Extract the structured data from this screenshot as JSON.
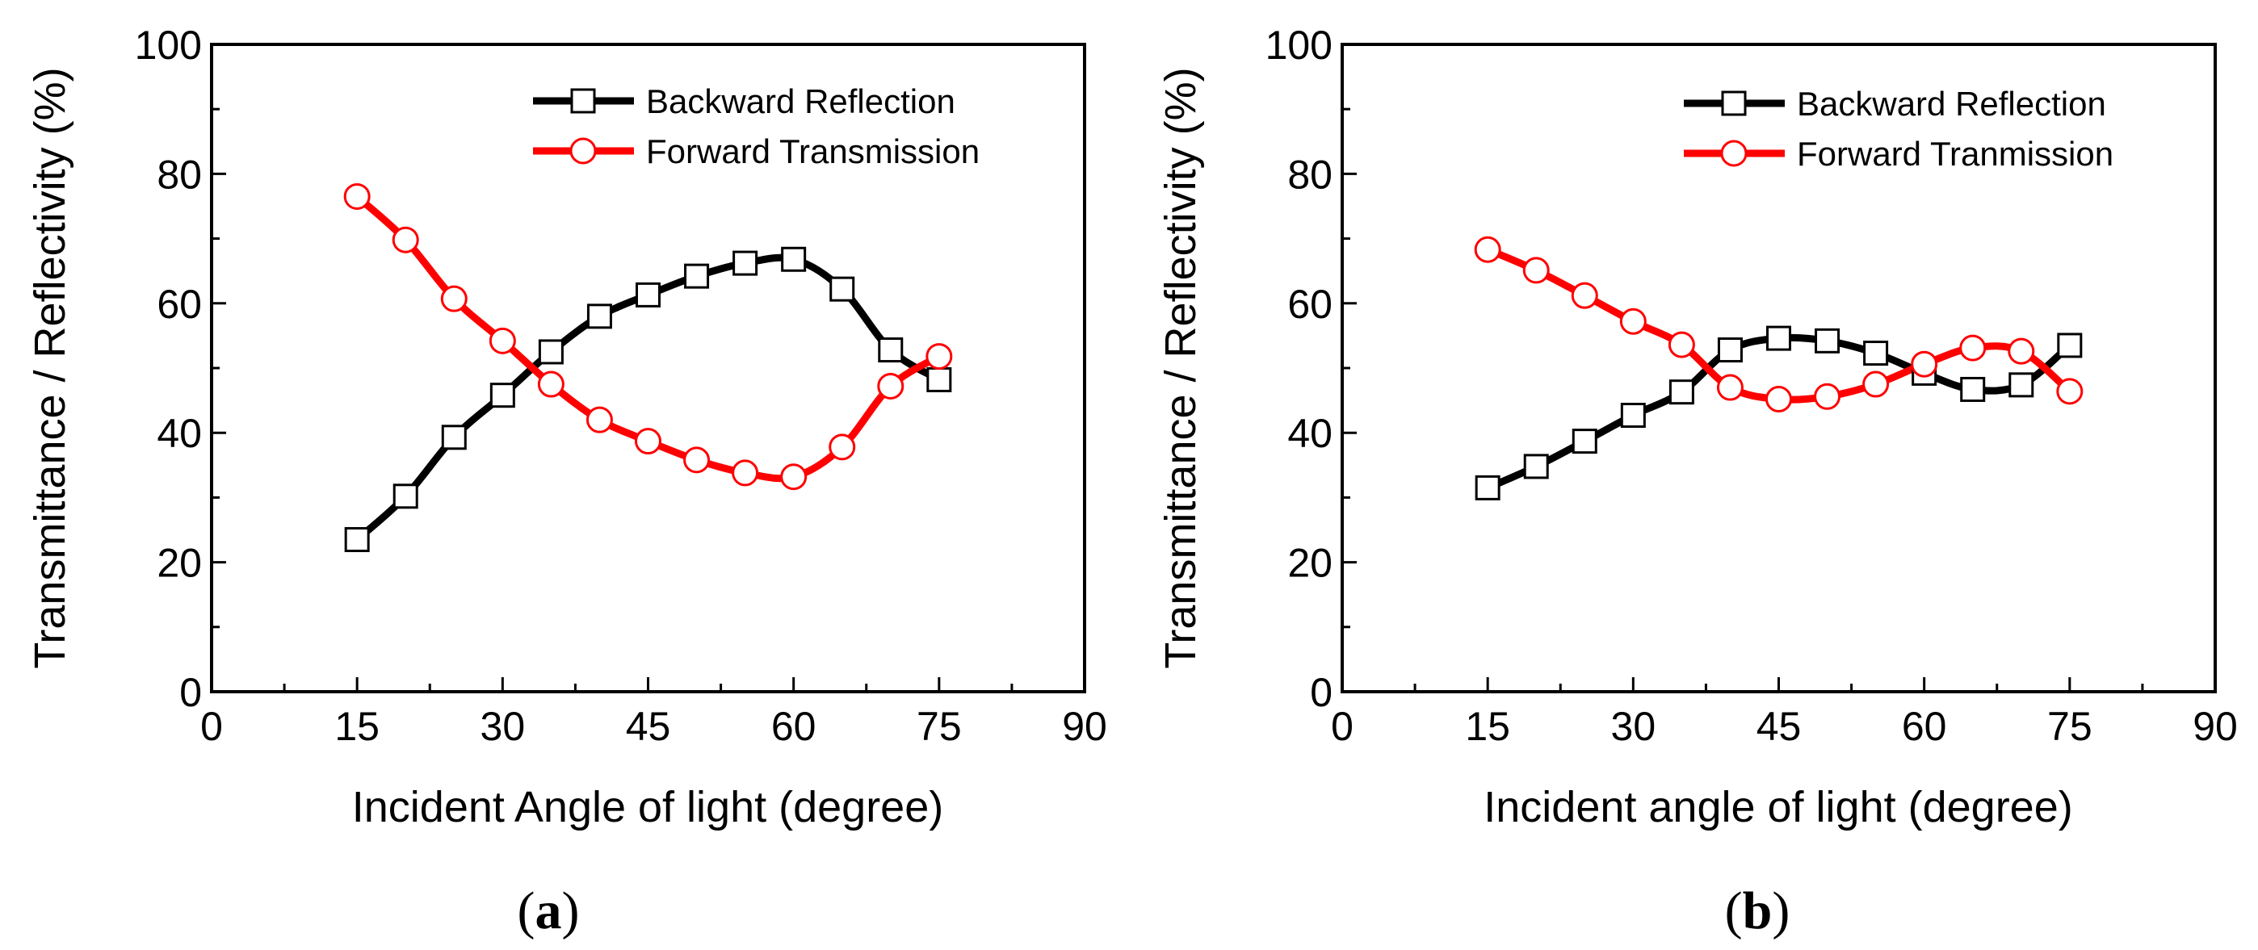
{
  "chart_data": [
    {
      "type": "line",
      "panel": "a",
      "panel_label": "a",
      "xlabel": "Incident Angle of light (degree)",
      "ylabel": "Transmittance / Reflectivity (%)",
      "xlim": [
        0,
        90
      ],
      "ylim": [
        0,
        100
      ],
      "xticks": [
        0,
        15,
        30,
        45,
        60,
        75,
        90
      ],
      "yticks": [
        0,
        20,
        40,
        60,
        80,
        100
      ],
      "legend_position": "top-right",
      "x": [
        15,
        20,
        25,
        30,
        35,
        40,
        45,
        50,
        55,
        60,
        65,
        70,
        75
      ],
      "series": [
        {
          "name": "Backward Reflection",
          "color": "#000000",
          "marker": "square",
          "values": [
            23.5,
            30.2,
            39.3,
            45.8,
            52.5,
            58.0,
            61.3,
            64.2,
            66.2,
            66.8,
            62.2,
            52.8,
            48.2
          ]
        },
        {
          "name": "Forward Transmission",
          "color": "#ff0000",
          "marker": "circle",
          "values": [
            76.5,
            69.8,
            60.7,
            54.2,
            47.5,
            42.0,
            38.7,
            35.8,
            33.8,
            33.2,
            37.8,
            47.2,
            51.8
          ]
        }
      ]
    },
    {
      "type": "line",
      "panel": "b",
      "panel_label": "b",
      "xlabel": "Incident angle of light (degree)",
      "ylabel": "Transmittance / Reflectivity (%)",
      "xlim": [
        0,
        90
      ],
      "ylim": [
        0,
        100
      ],
      "xticks": [
        0,
        15,
        30,
        45,
        60,
        75,
        90
      ],
      "yticks": [
        0,
        20,
        40,
        60,
        80,
        100
      ],
      "legend_position": "top-right",
      "x": [
        15,
        20,
        25,
        30,
        35,
        40,
        45,
        50,
        55,
        60,
        65,
        70,
        75
      ],
      "series": [
        {
          "name": "Backward Reflection",
          "color": "#000000",
          "marker": "square",
          "values": [
            31.5,
            34.8,
            38.7,
            42.7,
            46.3,
            52.8,
            54.6,
            54.2,
            52.3,
            49.2,
            46.7,
            47.4,
            53.5
          ]
        },
        {
          "name": "Forward Tranmission",
          "color": "#ff0000",
          "marker": "circle",
          "values": [
            68.3,
            65.1,
            61.2,
            57.2,
            53.6,
            47.0,
            45.2,
            45.6,
            47.5,
            50.6,
            53.1,
            52.6,
            46.4
          ]
        }
      ]
    }
  ]
}
